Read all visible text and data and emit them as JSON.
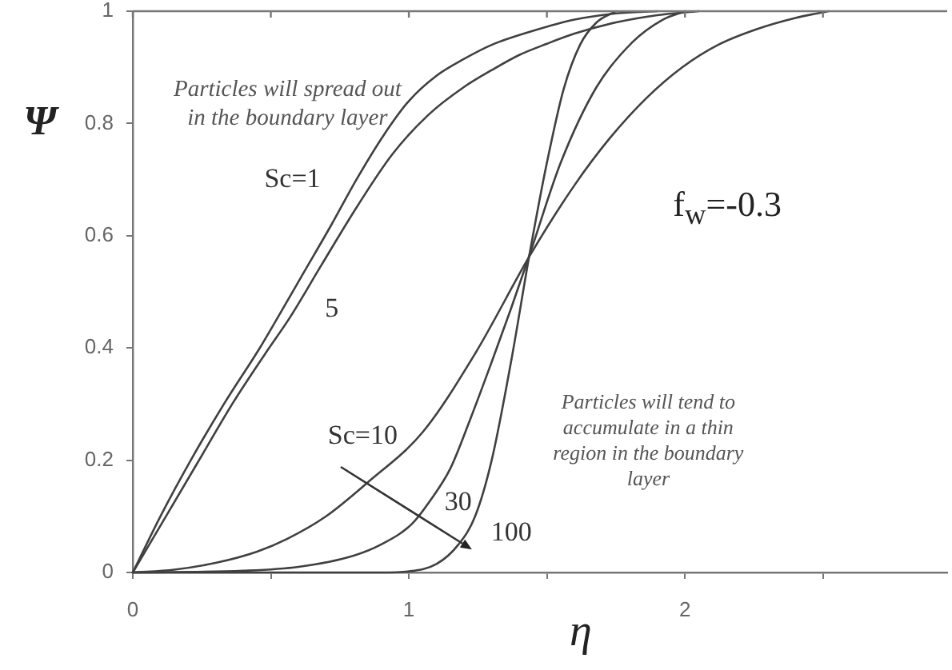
{
  "chart_data": {
    "type": "line",
    "xlabel": "η",
    "ylabel": "Ψ",
    "xlim": [
      0,
      2.95
    ],
    "ylim": [
      0,
      1
    ],
    "xticks": [
      0,
      {
        "value": 0.5,
        "label": null
      },
      1,
      {
        "value": 1.5,
        "label": null
      },
      2,
      {
        "value": 2.5,
        "label": null
      }
    ],
    "yticks": [
      0,
      0.2,
      0.4,
      0.6,
      0.8,
      1
    ],
    "marker": "none",
    "annotations": [
      "Particles will spread out in the boundary layer",
      "f$_{w}$=-0.3",
      "Particles will tend to accumulate in a thin region in the boundary layer"
    ],
    "series": [
      {
        "name": "Sc=1",
        "color": "#404040",
        "x": [
          0,
          0.1,
          0.21,
          0.33,
          0.46,
          0.52,
          0.62,
          0.72,
          0.81,
          0.91,
          1.0,
          1.1,
          1.2,
          1.3,
          1.45,
          1.6,
          1.75,
          1.9
        ],
        "values": [
          0,
          0.1,
          0.2,
          0.3,
          0.4,
          0.45,
          0.535,
          0.62,
          0.7,
          0.78,
          0.84,
          0.885,
          0.915,
          0.94,
          0.965,
          0.985,
          0.996,
          1
        ]
      },
      {
        "name": "5",
        "color": "#404040",
        "x": [
          0,
          0.12,
          0.24,
          0.36,
          0.48,
          0.57,
          0.68,
          0.81,
          0.94,
          1.07,
          1.2,
          1.3,
          1.4,
          1.5,
          1.6,
          1.75,
          1.9,
          2.05
        ],
        "values": [
          0,
          0.1,
          0.2,
          0.3,
          0.39,
          0.455,
          0.545,
          0.65,
          0.745,
          0.815,
          0.865,
          0.895,
          0.922,
          0.942,
          0.96,
          0.98,
          0.993,
          1
        ]
      },
      {
        "name": "Sc=10",
        "color": "#404040",
        "x": [
          0,
          0.15,
          0.3,
          0.45,
          0.56,
          0.7,
          0.85,
          1.05,
          1.24,
          1.44,
          1.6,
          1.73,
          1.86,
          1.99,
          2.12,
          2.26,
          2.4,
          2.52
        ],
        "values": [
          0,
          0.005,
          0.017,
          0.037,
          0.06,
          0.1,
          0.16,
          0.25,
          0.39,
          0.566,
          0.69,
          0.775,
          0.845,
          0.9,
          0.94,
          0.968,
          0.988,
          1
        ]
      },
      {
        "name": "30",
        "color": "#404040",
        "x": [
          0,
          0.4,
          0.6,
          0.8,
          0.9,
          1.01,
          1.08,
          1.15,
          1.22,
          1.3,
          1.37,
          1.44,
          1.55,
          1.68,
          1.81,
          1.92,
          2.0
        ],
        "values": [
          0,
          0.003,
          0.01,
          0.03,
          0.05,
          0.086,
          0.13,
          0.185,
          0.27,
          0.375,
          0.47,
          0.57,
          0.73,
          0.865,
          0.945,
          0.985,
          1
        ]
      },
      {
        "name": "100",
        "color": "#404040",
        "x": [
          0,
          0.9,
          1.0,
          1.1,
          1.18,
          1.24,
          1.3,
          1.37,
          1.44,
          1.5,
          1.56,
          1.62,
          1.68,
          1.75
        ],
        "values": [
          0,
          0,
          0.002,
          0.015,
          0.05,
          0.1,
          0.2,
          0.375,
          0.575,
          0.73,
          0.86,
          0.94,
          0.98,
          1
        ]
      }
    ]
  }
}
